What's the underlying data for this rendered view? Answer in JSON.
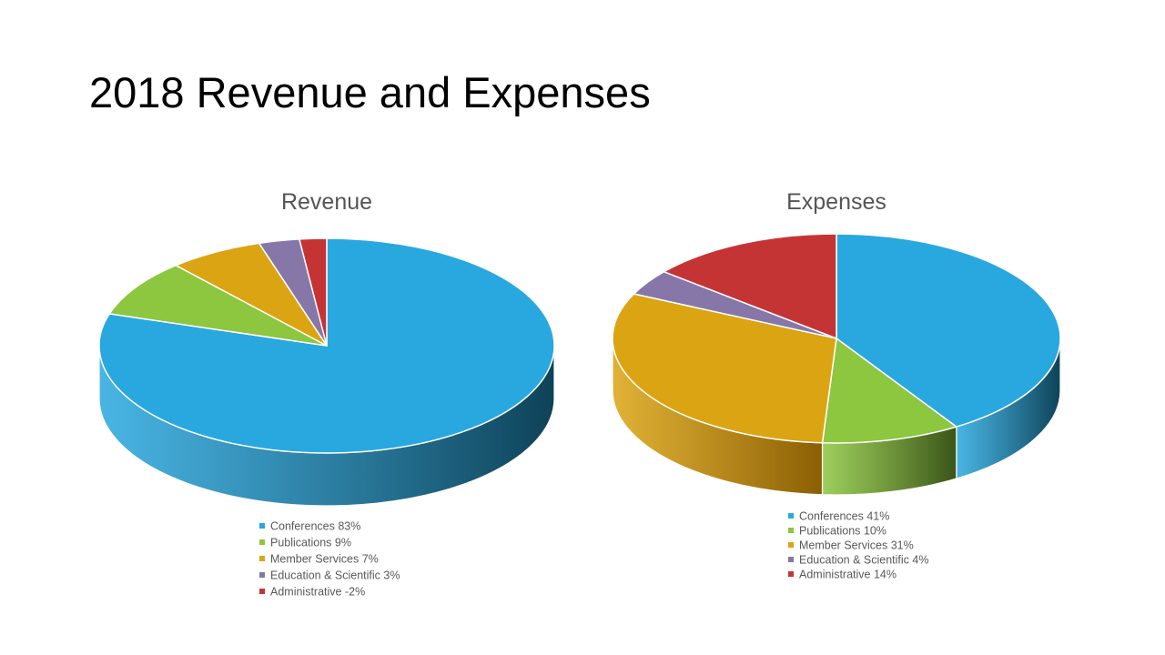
{
  "slide": {
    "title": "2018 Revenue and Expenses"
  },
  "chart_data": [
    {
      "type": "pie",
      "title": "Revenue",
      "categories": [
        "Conferences",
        "Publications",
        "Member Services",
        "Education & Scientific",
        "Administrative"
      ],
      "values": [
        83,
        9,
        7,
        3,
        -2
      ],
      "legend_labels": [
        "Conferences 83%",
        "Publications 9%",
        "Member Services 7%",
        "Education & Scientific 3%",
        "Administrative -2%"
      ],
      "legend_position": "bottom",
      "style": "3d"
    },
    {
      "type": "pie",
      "title": "Expenses",
      "categories": [
        "Conferences",
        "Publications",
        "Member Services",
        "Education & Scientific",
        "Administrative"
      ],
      "values": [
        41,
        10,
        31,
        4,
        14
      ],
      "legend_labels": [
        "Conferences 41%",
        "Publications 10%",
        "Member Services 31%",
        "Education & Scientific 4%",
        "Administrative 14%"
      ],
      "legend_position": "bottom",
      "style": "3d"
    }
  ],
  "colors": {
    "Conferences": "#29A8DF",
    "Publications": "#8DC63F",
    "Member Services": "#DBA412",
    "Education & Scientific": "#8777A8",
    "Administrative": "#C53435"
  },
  "side_colors": {
    "Conferences": "#0E4258",
    "Publications": "#3A5418",
    "Member Services": "#8A5E04",
    "Education & Scientific": "#4A3F66",
    "Administrative": "#6E1A1A"
  }
}
